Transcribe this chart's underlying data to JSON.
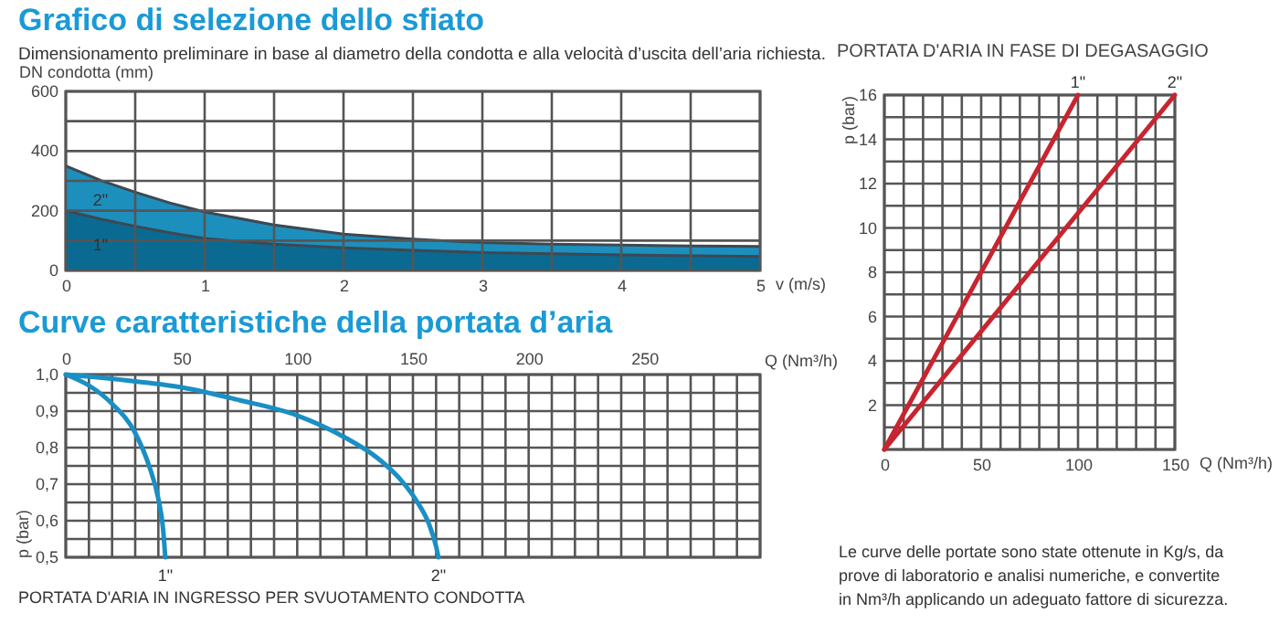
{
  "chart_data": [
    {
      "type": "area",
      "title": "Grafico di selezione dello sfiato",
      "subtitle": "Dimensionamento preliminare in base al diametro della condotta e alla velocità d’uscita dell’aria richiesta.",
      "xlabel": "v (m/s)",
      "ylabel": "DN condotta (mm)",
      "x": [
        0,
        0.25,
        0.5,
        0.75,
        1,
        1.5,
        2,
        2.5,
        3,
        3.5,
        4,
        4.5,
        5
      ],
      "series": [
        {
          "name": "2\"",
          "color": "#1d8fbd",
          "values": [
            350,
            302,
            262,
            226,
            196,
            152,
            122,
            105,
            93,
            88,
            85,
            82,
            80
          ]
        },
        {
          "name": "1\"",
          "color": "#0b6a91",
          "values": [
            200,
            172,
            148,
            126,
            107,
            88,
            76,
            67,
            60,
            56,
            52,
            49,
            47
          ]
        }
      ],
      "xlim": [
        0,
        5
      ],
      "xticks": [
        0,
        {
          "value": 0.5,
          "label": null
        },
        1,
        {
          "value": 1.5,
          "label": null
        },
        2,
        {
          "value": 2.5,
          "label": null
        },
        3,
        {
          "value": 3.5,
          "label": null
        },
        4,
        {
          "value": 4.5,
          "label": null
        },
        5
      ],
      "ylim": [
        0,
        600
      ],
      "yticks": [
        0,
        {
          "value": 100,
          "label": null
        },
        200,
        {
          "value": 300,
          "label": null
        },
        400,
        {
          "value": 500,
          "label": null
        },
        600
      ],
      "grid": true
    },
    {
      "type": "line",
      "title": "Curve caratteristiche della portata d’aria",
      "xlabel": "Q (Nm³/h)",
      "ylabel": "p (bar)",
      "annotations": [
        "PORTATA D'ARIA IN INGRESSO PER SVUOTAMENTO CONDOTTA"
      ],
      "series": [
        {
          "name": "1\"",
          "color": "#1a8fc4",
          "x": [
            0,
            10,
            20,
            30,
            36,
            40,
            42,
            43
          ],
          "values": [
            1.0,
            0.97,
            0.92,
            0.84,
            0.75,
            0.66,
            0.58,
            0.5
          ]
        },
        {
          "name": "2\"",
          "color": "#1a8fc4",
          "x": [
            0,
            25,
            50,
            75,
            100,
            120,
            135,
            145,
            152,
            157,
            160,
            161
          ],
          "values": [
            1.0,
            0.985,
            0.965,
            0.93,
            0.888,
            0.83,
            0.77,
            0.71,
            0.65,
            0.59,
            0.53,
            0.5
          ]
        }
      ],
      "xlim": [
        0,
        300
      ],
      "xticks": [
        0,
        {
          "value": 10,
          "label": null
        },
        {
          "value": 20,
          "label": null
        },
        {
          "value": 30,
          "label": null
        },
        {
          "value": 40,
          "label": null
        },
        50,
        {
          "value": 60,
          "label": null
        },
        {
          "value": 70,
          "label": null
        },
        {
          "value": 80,
          "label": null
        },
        {
          "value": 90,
          "label": null
        },
        100,
        {
          "value": 110,
          "label": null
        },
        {
          "value": 120,
          "label": null
        },
        {
          "value": 130,
          "label": null
        },
        {
          "value": 140,
          "label": null
        },
        150,
        {
          "value": 160,
          "label": null
        },
        {
          "value": 170,
          "label": null
        },
        {
          "value": 180,
          "label": null
        },
        {
          "value": 190,
          "label": null
        },
        200,
        {
          "value": 210,
          "label": null
        },
        {
          "value": 220,
          "label": null
        },
        {
          "value": 230,
          "label": null
        },
        {
          "value": 240,
          "label": null
        },
        250,
        {
          "value": 260,
          "label": null
        },
        {
          "value": 270,
          "label": null
        },
        {
          "value": 280,
          "label": null
        },
        {
          "value": 290,
          "label": null
        },
        {
          "value": 300,
          "label": null
        }
      ],
      "ylim": [
        0.5,
        1.0
      ],
      "yticks": [
        {
          "value": 0.5,
          "label": "0,5"
        },
        {
          "value": 0.55,
          "label": null
        },
        {
          "value": 0.6,
          "label": "0,6"
        },
        {
          "value": 0.65,
          "label": null
        },
        {
          "value": 0.7,
          "label": "0,7"
        },
        {
          "value": 0.75,
          "label": null
        },
        {
          "value": 0.8,
          "label": "0,8"
        },
        {
          "value": 0.85,
          "label": null
        },
        {
          "value": 0.9,
          "label": "0,9"
        },
        {
          "value": 0.95,
          "label": null
        },
        {
          "value": 1.0,
          "label": "1,0"
        }
      ],
      "grid": true
    },
    {
      "type": "line",
      "title": "PORTATA D'ARIA IN FASE DI DEGASAGGIO",
      "xlabel": "Q (Nm³/h)",
      "ylabel": "p (bar)",
      "annotations": [
        "Le curve delle portate sono state ottenute in Kg/s, da prove di laboratorio e analisi numeriche, e convertite in Nm³/h applicando un adeguato fattore di sicurezza."
      ],
      "series": [
        {
          "name": "1\"",
          "color": "#c8242f",
          "x": [
            0,
            100
          ],
          "values": [
            0,
            16
          ]
        },
        {
          "name": "2\"",
          "color": "#c8242f",
          "x": [
            0,
            150
          ],
          "values": [
            0,
            16
          ]
        }
      ],
      "xlim": [
        0,
        150
      ],
      "xticks": [
        0,
        {
          "value": 10,
          "label": null
        },
        {
          "value": 20,
          "label": null
        },
        {
          "value": 30,
          "label": null
        },
        {
          "value": 40,
          "label": null
        },
        50,
        {
          "value": 60,
          "label": null
        },
        {
          "value": 70,
          "label": null
        },
        {
          "value": 80,
          "label": null
        },
        {
          "value": 90,
          "label": null
        },
        100,
        {
          "value": 110,
          "label": null
        },
        {
          "value": 120,
          "label": null
        },
        {
          "value": 130,
          "label": null
        },
        {
          "value": 140,
          "label": null
        },
        150
      ],
      "ylim": [
        0,
        16
      ],
      "yticks": [
        {
          "value": 0,
          "label": null
        },
        {
          "value": 1,
          "label": null
        },
        2,
        {
          "value": 3,
          "label": null
        },
        4,
        {
          "value": 5,
          "label": null
        },
        6,
        {
          "value": 7,
          "label": null
        },
        8,
        {
          "value": 9,
          "label": null
        },
        10,
        {
          "value": 11,
          "label": null
        },
        12,
        {
          "value": 13,
          "label": null
        },
        14,
        {
          "value": 15,
          "label": null
        },
        16
      ],
      "grid": true
    }
  ]
}
